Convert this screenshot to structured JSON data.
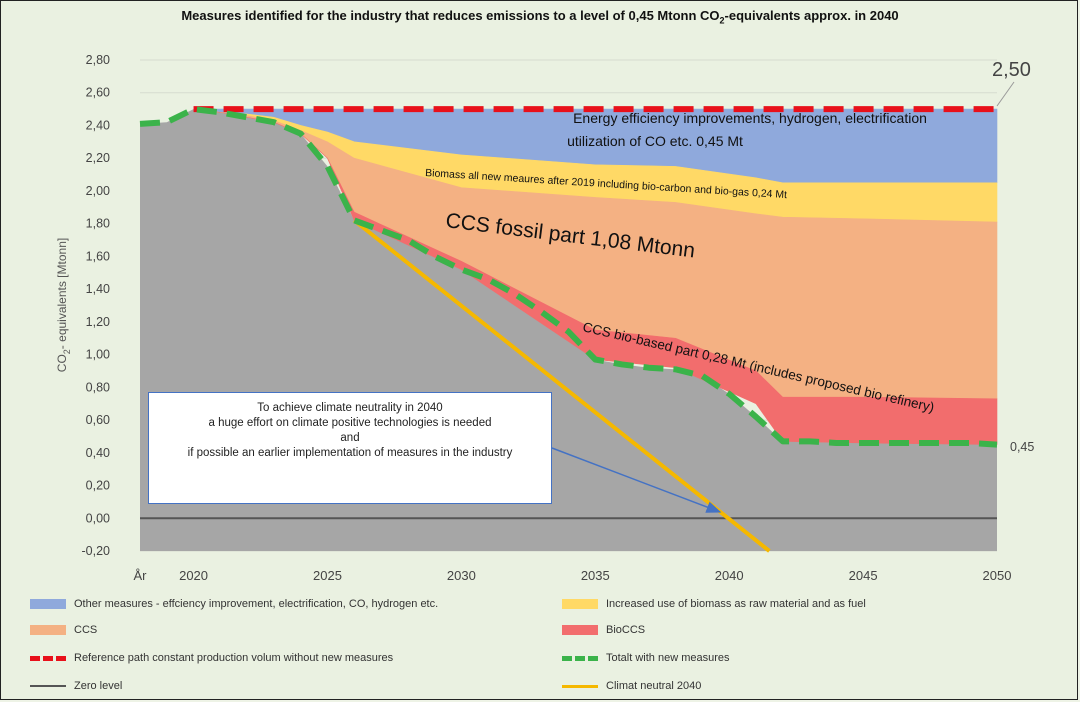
{
  "chart_data": {
    "type": "area",
    "title_parts": [
      "Measures identified for the industry that reduces emissions to a level of 0,45 Mtonn CO",
      "2",
      "-equivalents approx. in 2040"
    ],
    "ylabel_parts": [
      "CO",
      "2",
      "- equivalents [Mtonn]"
    ],
    "ylim": [
      -0.2,
      2.8
    ],
    "yticks": [
      "2,80",
      "2,60",
      "2,40",
      "2,20",
      "2,00",
      "1,80",
      "1,60",
      "1,40",
      "1,20",
      "1,00",
      "0,80",
      "0,60",
      "0,40",
      "0,20",
      "0,00",
      "-0,20"
    ],
    "ytick_values": [
      2.8,
      2.6,
      2.4,
      2.2,
      2.0,
      1.8,
      1.6,
      1.4,
      1.2,
      1.0,
      0.8,
      0.6,
      0.4,
      0.2,
      0.0,
      -0.2
    ],
    "xticks": [
      "År",
      "2020",
      "2025",
      "2030",
      "2035",
      "2040",
      "2045",
      "2050"
    ],
    "xtick_values": [
      2018,
      2020,
      2025,
      2030,
      2035,
      2040,
      2045,
      2050
    ],
    "xlim": [
      2018,
      2050
    ],
    "grid": true,
    "series": [
      {
        "name": "Other measures - effciency improvement, electrification, CO, hydrogen etc.",
        "color": "#8fa9dc",
        "x": [
          2020,
          2021,
          2022,
          2023,
          2024,
          2025,
          2026,
          2030,
          2035,
          2038,
          2041,
          2042,
          2045,
          2050
        ],
        "upper": [
          2.5,
          2.5,
          2.5,
          2.5,
          2.5,
          2.5,
          2.5,
          2.5,
          2.5,
          2.5,
          2.5,
          2.5,
          2.5,
          2.5
        ],
        "lower": [
          2.5,
          2.48,
          2.47,
          2.45,
          2.4,
          2.36,
          2.3,
          2.22,
          2.16,
          2.15,
          2.08,
          2.05,
          2.05,
          2.05
        ]
      },
      {
        "name": "Increased use of biomass as raw material and as fuel",
        "color": "#ffd966",
        "x": [
          2020,
          2021,
          2022,
          2023,
          2024,
          2025,
          2026,
          2030,
          2035,
          2038,
          2041,
          2042,
          2045,
          2050
        ],
        "upper": [
          2.5,
          2.48,
          2.47,
          2.45,
          2.4,
          2.36,
          2.3,
          2.22,
          2.16,
          2.15,
          2.08,
          2.05,
          2.05,
          2.05
        ],
        "lower": [
          2.5,
          2.48,
          2.46,
          2.43,
          2.37,
          2.3,
          2.2,
          2.02,
          1.96,
          1.93,
          1.86,
          1.84,
          1.83,
          1.81
        ]
      },
      {
        "name": "CCS",
        "color": "#f4b183",
        "x": [
          2020,
          2021,
          2022,
          2023,
          2024,
          2025,
          2026,
          2030,
          2035,
          2038,
          2041,
          2042,
          2045,
          2050
        ],
        "upper": [
          2.5,
          2.48,
          2.46,
          2.43,
          2.37,
          2.3,
          2.2,
          2.02,
          1.96,
          1.93,
          1.86,
          1.84,
          1.83,
          1.81
        ],
        "lower": [
          2.5,
          2.48,
          2.45,
          2.42,
          2.35,
          2.2,
          1.87,
          1.57,
          1.15,
          1.1,
          0.9,
          0.74,
          0.74,
          0.73
        ]
      },
      {
        "name": "BioCCS",
        "color": "#f26d6d",
        "x": [
          2020,
          2021,
          2022,
          2023,
          2024,
          2025,
          2026,
          2030,
          2035,
          2038,
          2041,
          2042,
          2045,
          2050
        ],
        "upper": [
          2.5,
          2.48,
          2.45,
          2.42,
          2.35,
          2.2,
          1.87,
          1.57,
          1.15,
          1.1,
          0.9,
          0.74,
          0.74,
          0.73
        ],
        "lower": [
          2.5,
          2.48,
          2.45,
          2.42,
          2.35,
          2.2,
          1.82,
          1.52,
          0.97,
          0.92,
          0.7,
          0.47,
          0.46,
          0.45
        ]
      },
      {
        "name": "Reference path constant production volum without new measures",
        "style": "dashed",
        "color": "#e8101a",
        "x": [
          2020,
          2050
        ],
        "y": [
          2.5,
          2.5
        ]
      },
      {
        "name": "Totalt with new measures",
        "style": "dashed",
        "color": "#3bb34a",
        "x": [
          2018,
          2019,
          2020,
          2021,
          2022,
          2023,
          2024,
          2025,
          2026,
          2027,
          2028,
          2029,
          2030,
          2031,
          2032,
          2033,
          2034,
          2035,
          2036,
          2037,
          2038,
          2039,
          2040,
          2041,
          2042,
          2043,
          2044,
          2045,
          2046,
          2047,
          2048,
          2049,
          2050
        ],
        "y": [
          2.41,
          2.42,
          2.5,
          2.48,
          2.45,
          2.42,
          2.35,
          2.15,
          1.82,
          1.76,
          1.7,
          1.6,
          1.52,
          1.46,
          1.37,
          1.26,
          1.14,
          0.97,
          0.94,
          0.92,
          0.91,
          0.87,
          0.76,
          0.62,
          0.47,
          0.47,
          0.46,
          0.46,
          0.46,
          0.46,
          0.46,
          0.46,
          0.45
        ]
      },
      {
        "name": "Zero level",
        "color": "#555555",
        "x": [
          2018,
          2050
        ],
        "y": [
          0,
          0
        ]
      },
      {
        "name": "Climat neutral 2040",
        "color": "#f5b800",
        "x": [
          2026,
          2041.5
        ],
        "y": [
          1.82,
          -0.2
        ]
      }
    ],
    "baseline_area": {
      "color": "#a6a6a6"
    },
    "annotations": {
      "top_value": "2,50",
      "end_value": "0,45",
      "energy_line1": "Energy efficiency improvements, hydrogen, electrification",
      "energy_line2": "utilization of CO etc.   0,45 Mt",
      "biomass": "Biomass all new meaures after 2019 including bio-carbon and bio-gas  0,24 Mt",
      "ccs": "CCS fossil part  1,08 Mtonn",
      "bioccs": "CCS bio-based part 0,28 Mt (includes proposed bio refinery)",
      "callout_line1": "To achieve climate neutrality in 2040",
      "callout_line2": "a huge effort on climate positive technologies is needed",
      "callout_line3": "and",
      "callout_line4": "if possible  an earlier implementation of measures in the industry"
    },
    "legend_placement": "bottom"
  }
}
